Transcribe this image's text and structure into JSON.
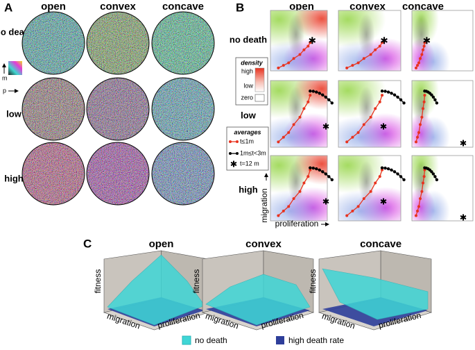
{
  "panel_a": {
    "label": "A",
    "columns": [
      "open",
      "convex",
      "concave"
    ],
    "rows": [
      "no death",
      "low",
      "high"
    ],
    "color_key": {
      "y": "m",
      "x": "p"
    }
  },
  "panel_b": {
    "label": "B",
    "columns": [
      "open",
      "convex",
      "concave"
    ],
    "rows": [
      "no death",
      "low",
      "high"
    ],
    "density_legend": {
      "title": "density",
      "labels": [
        "high",
        "low",
        "zero"
      ]
    },
    "averages_legend": {
      "title": "averages",
      "items": [
        "t≤1m",
        "1m≤t<3m",
        "t=12 m"
      ]
    },
    "x_axis": "proliferation",
    "y_axis": "migration"
  },
  "panel_c": {
    "label": "C",
    "plots": [
      {
        "title": "open",
        "z_axis": "fitness",
        "x_axis": "migration",
        "y_axis": "proliferation"
      },
      {
        "title": "convex",
        "z_axis": "fitness",
        "x_axis": "migration",
        "y_axis": "proliferation"
      },
      {
        "title": "concave",
        "z_axis": "fitness",
        "x_axis": "migration",
        "y_axis": "proliferation"
      }
    ],
    "legend": [
      "no death",
      "high death rate"
    ]
  }
}
